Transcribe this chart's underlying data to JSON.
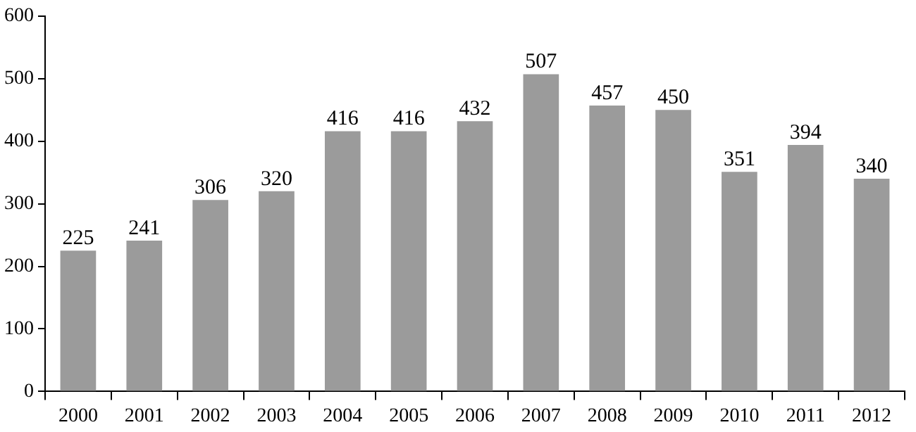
{
  "chart_data": {
    "type": "bar",
    "categories": [
      "2000",
      "2001",
      "2002",
      "2003",
      "2004",
      "2005",
      "2006",
      "2007",
      "2008",
      "2009",
      "2010",
      "2011",
      "2012"
    ],
    "values": [
      225,
      241,
      306,
      320,
      416,
      416,
      432,
      507,
      457,
      450,
      351,
      394,
      340
    ],
    "color": "#9b9b9b",
    "ylim": [
      0,
      600
    ],
    "yticks": [
      0,
      100,
      200,
      300,
      400,
      500,
      600
    ],
    "grid": false,
    "legend": false,
    "data_labels": true
  }
}
